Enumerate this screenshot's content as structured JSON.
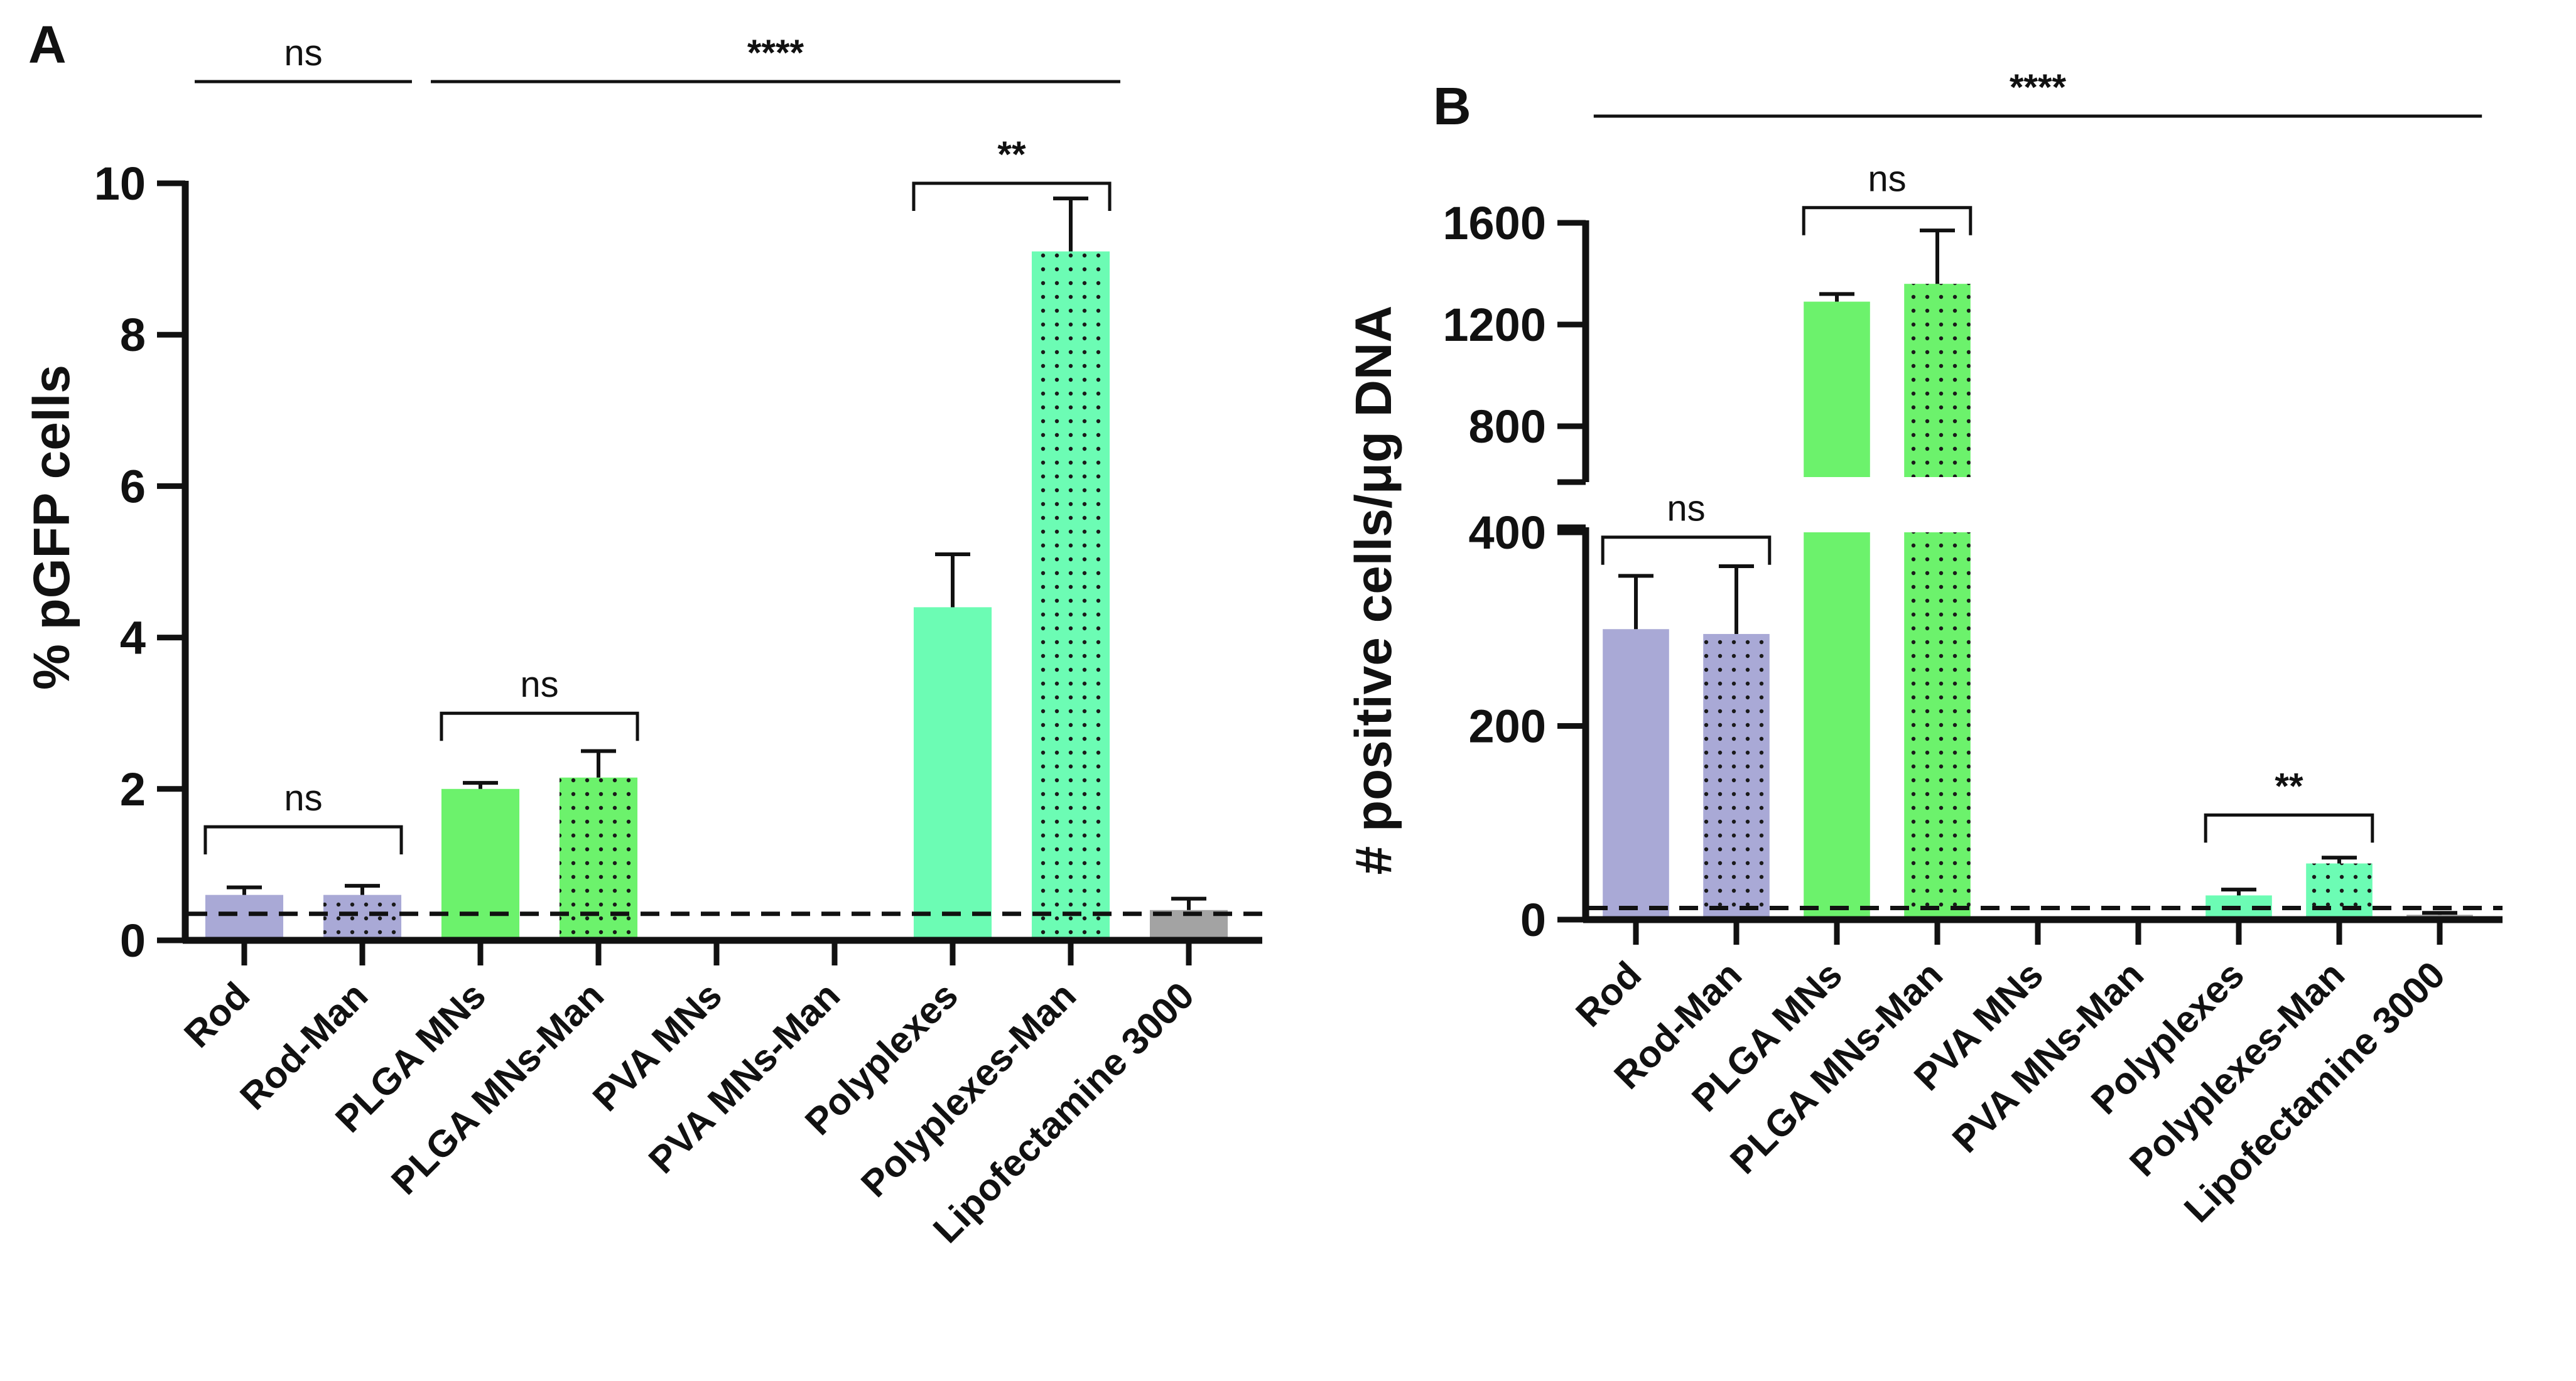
{
  "chart_data": [
    {
      "type": "bar",
      "panel_label": "A",
      "ylabel": "% pGFP cells",
      "ylim": [
        0,
        10
      ],
      "yticks": [
        "0",
        "2",
        "4",
        "6",
        "8",
        "10"
      ],
      "categories": [
        "Rod",
        "Rod-Man",
        "PLGA MNs",
        "PLGA MNs-Man",
        "PVA MNs",
        "PVA MNs-Man",
        "Polyplexes",
        "Polyplexes-Man",
        "Lipofectamine 3000"
      ],
      "values": [
        0.6,
        0.6,
        2.0,
        2.15,
        0,
        0,
        4.4,
        9.1,
        0.4
      ],
      "errors": [
        0.1,
        0.12,
        0.08,
        0.35,
        0,
        0,
        0.7,
        0.7,
        0.15
      ],
      "colors": [
        "#a9a9d6",
        "#a9a9d6",
        "#6cf26c",
        "#6cf26c",
        "#6cf26c",
        "#6cf26c",
        "#6cfcb4",
        "#6cfcb4",
        "#a3a3a3"
      ],
      "dotted": [
        false,
        true,
        false,
        true,
        false,
        true,
        false,
        true,
        false
      ],
      "baseline": 0.35,
      "significance": [
        {
          "from": 0,
          "to": 1,
          "label": "ns",
          "bracket": true,
          "y": 1.5
        },
        {
          "from": 2,
          "to": 3,
          "label": "ns",
          "bracket": true,
          "y": 3.0
        },
        {
          "from": 6,
          "to": 7,
          "label": "**",
          "bracket": true,
          "y": 10.0
        },
        {
          "from": 0,
          "to": 1,
          "label": "ns",
          "bracket": false,
          "y": 11.3
        },
        {
          "from": 2,
          "to": 7,
          "label": "****",
          "bracket": false,
          "y": 11.3
        }
      ]
    },
    {
      "type": "bar",
      "panel_label": "B",
      "ylabel": "# positive cells/μg DNA",
      "axis_break": {
        "lower": [
          0,
          400
        ],
        "upper": [
          600,
          1600
        ]
      },
      "yticks_lower": [
        "0",
        "200",
        "400"
      ],
      "yticks_upper": [
        "800",
        "1200",
        "1600"
      ],
      "categories": [
        "Rod",
        "Rod-Man",
        "PLGA MNs",
        "PLGA MNs-Man",
        "PVA MNs",
        "PVA MNs-Man",
        "Polyplexes",
        "Polyplexes-Man",
        "Lipofectamine 3000"
      ],
      "values": [
        300,
        295,
        1290,
        1360,
        0,
        0,
        25,
        58,
        5
      ],
      "errors": [
        55,
        70,
        30,
        210,
        0,
        0,
        6,
        6,
        2
      ],
      "colors": [
        "#a9a9d6",
        "#a9a9d6",
        "#6cf26c",
        "#6cf26c",
        "#6cf26c",
        "#6cf26c",
        "#6cfcb4",
        "#6cfcb4",
        "#a3a3a3"
      ],
      "dotted": [
        false,
        true,
        false,
        true,
        false,
        true,
        false,
        true,
        false
      ],
      "baseline": 12,
      "significance": [
        {
          "from": 0,
          "to": 1,
          "label": "ns",
          "bracket": true,
          "y": 395
        },
        {
          "from": 6,
          "to": 7,
          "label": "**",
          "bracket": true,
          "y": 108
        },
        {
          "from": 2,
          "to": 3,
          "label": "ns",
          "bracket": true,
          "y": 1660
        },
        {
          "from": 0,
          "to": 8,
          "label": "****",
          "bracket": false,
          "y": 1790
        }
      ]
    }
  ]
}
